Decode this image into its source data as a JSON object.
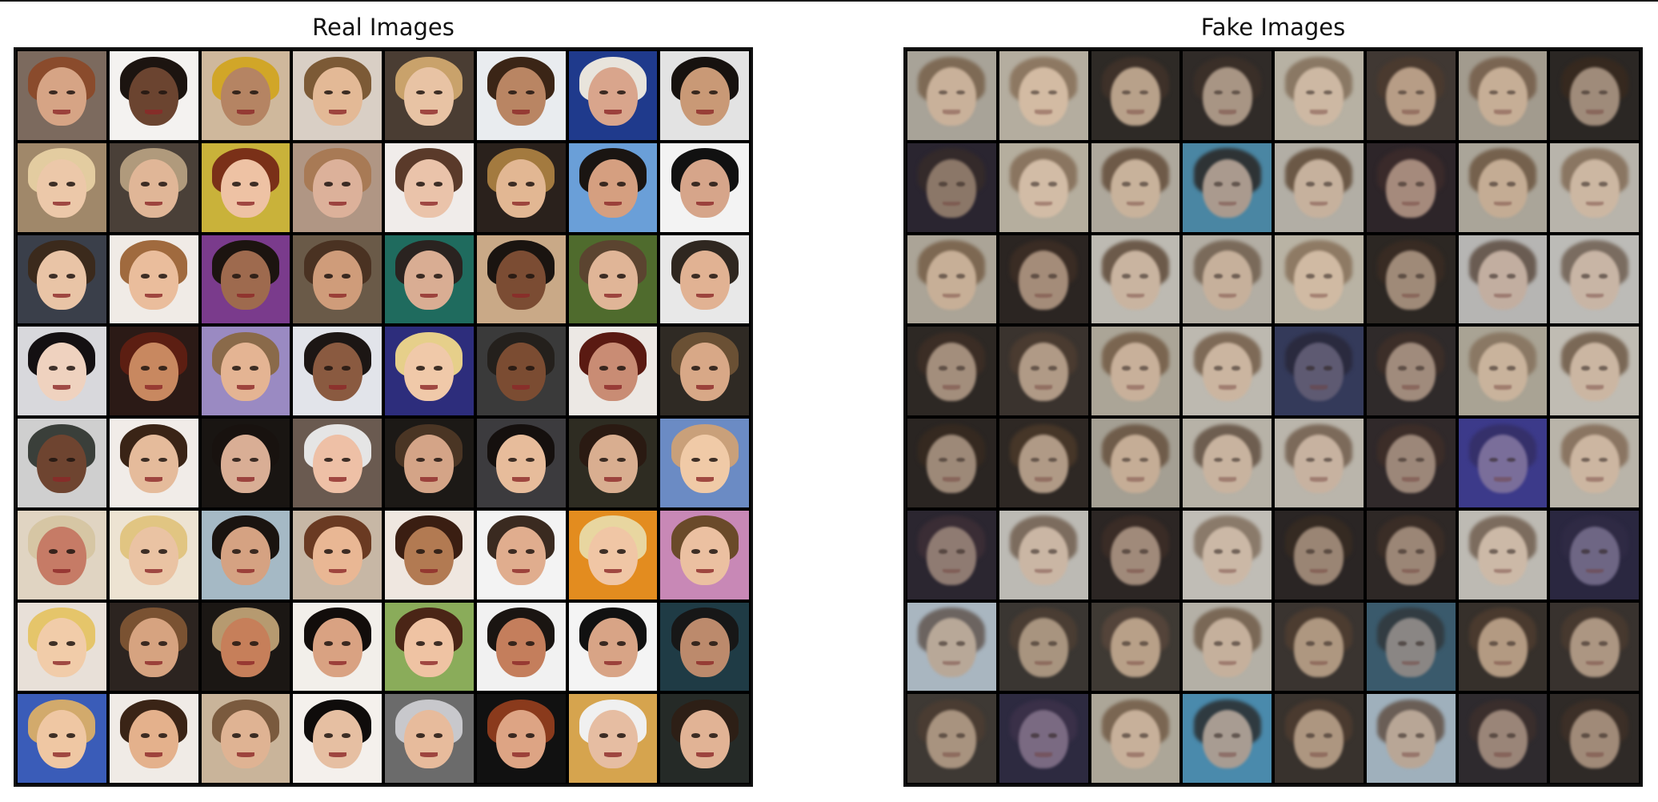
{
  "titles": {
    "real": "Real Images",
    "fake": "Fake Images"
  },
  "real_tiles": [
    {
      "bg": "#7c6a5e",
      "skin": "#d6a485",
      "hair": "#8a4b2c"
    },
    {
      "bg": "#f4f2f0",
      "skin": "#6b4430",
      "hair": "#1c1410"
    },
    {
      "bg": "#cfb89c",
      "skin": "#b58463",
      "hair": "#d1a628"
    },
    {
      "bg": "#d9cfc5",
      "skin": "#e3b996",
      "hair": "#7c5a36"
    },
    {
      "bg": "#4a3d33",
      "skin": "#e8c3a4",
      "hair": "#c9a26b"
    },
    {
      "bg": "#e9ecef",
      "skin": "#b98563",
      "hair": "#3b2516"
    },
    {
      "bg": "#1f3a8c",
      "skin": "#d9a58c",
      "hair": "#e8e4dc"
    },
    {
      "bg": "#e3e3e3",
      "skin": "#c99976",
      "hair": "#17120f"
    },
    {
      "bg": "#a0886a",
      "skin": "#ecc8a9",
      "hair": "#e3cca0"
    },
    {
      "bg": "#4a4038",
      "skin": "#e0b697",
      "hair": "#b09a7c"
    },
    {
      "bg": "#c9b23a",
      "skin": "#eec2a4",
      "hair": "#7a3018"
    },
    {
      "bg": "#b09684",
      "skin": "#dcb19a",
      "hair": "#a87a55"
    },
    {
      "bg": "#f0ecea",
      "skin": "#eac3aa",
      "hair": "#5a3a2a"
    },
    {
      "bg": "#2a211c",
      "skin": "#e2b793",
      "hair": "#a37a3f"
    },
    {
      "bg": "#6a9fd8",
      "skin": "#d59f80",
      "hair": "#1a1512"
    },
    {
      "bg": "#f3f3f3",
      "skin": "#d6a58a",
      "hair": "#111111"
    },
    {
      "bg": "#3a3f4a",
      "skin": "#e9c4a6",
      "hair": "#3b2a1c"
    },
    {
      "bg": "#f0ebe6",
      "skin": "#eabd9c",
      "hair": "#a06a3e"
    },
    {
      "bg": "#7a3b8c",
      "skin": "#9e6a4e",
      "hair": "#1c1410"
    },
    {
      "bg": "#6a5a48",
      "skin": "#cf9c7a",
      "hair": "#4a3222"
    },
    {
      "bg": "#1f6b5e",
      "skin": "#d9ad93",
      "hair": "#2a2320"
    },
    {
      "bg": "#c9a987",
      "skin": "#7b4c33",
      "hair": "#1a1410"
    },
    {
      "bg": "#4f6b2d",
      "skin": "#e0b597",
      "hair": "#5b4430"
    },
    {
      "bg": "#e8e8e8",
      "skin": "#e1b293",
      "hair": "#2f2720"
    },
    {
      "bg": "#d8d8dc",
      "skin": "#efd2bf",
      "hair": "#141012"
    },
    {
      "bg": "#2b1a16",
      "skin": "#c88860",
      "hair": "#5c1e12"
    },
    {
      "bg": "#9a8ac2",
      "skin": "#e4b493",
      "hair": "#8a6a4a"
    },
    {
      "bg": "#e2e4ea",
      "skin": "#8a5a40",
      "hair": "#1c1614"
    },
    {
      "bg": "#2d2d7c",
      "skin": "#f0c9a9",
      "hair": "#e6cf8a"
    },
    {
      "bg": "#3a3a3a",
      "skin": "#7b4c32",
      "hair": "#24201c"
    },
    {
      "bg": "#ece8e4",
      "skin": "#c98c74",
      "hair": "#5a1a12"
    },
    {
      "bg": "#2f2a24",
      "skin": "#d8a887",
      "hair": "#6a5034"
    },
    {
      "bg": "#cfcfcf",
      "skin": "#6e4430",
      "hair": "#3a3f3a"
    },
    {
      "bg": "#f1ece8",
      "skin": "#e5bb9b",
      "hair": "#3a2416"
    },
    {
      "bg": "#191512",
      "skin": "#d9ae95",
      "hair": "#18120f"
    },
    {
      "bg": "#6a5a50",
      "skin": "#eec0a6",
      "hair": "#e5e5e5"
    },
    {
      "bg": "#1c1916",
      "skin": "#d4a487",
      "hair": "#4a3524"
    },
    {
      "bg": "#3c3b3e",
      "skin": "#e7bc9b",
      "hair": "#15100e"
    },
    {
      "bg": "#2e2c22",
      "skin": "#d9ae90",
      "hair": "#2a1a12"
    },
    {
      "bg": "#6b8bc4",
      "skin": "#f0caa7",
      "hair": "#c9a07a"
    },
    {
      "bg": "#e0d4c2",
      "skin": "#c67b66",
      "hair": "#d6c6a4"
    },
    {
      "bg": "#ede3d2",
      "skin": "#eac3a3",
      "hair": "#e1c582"
    },
    {
      "bg": "#a5b9c5",
      "skin": "#d5a282",
      "hair": "#1a1410"
    },
    {
      "bg": "#c7b7a5",
      "skin": "#e9b794",
      "hair": "#6a3a22"
    },
    {
      "bg": "#efe7e0",
      "skin": "#b27a52",
      "hair": "#3a1e12"
    },
    {
      "bg": "#f3f3f3",
      "skin": "#e0ad8e",
      "hair": "#3a2a20"
    },
    {
      "bg": "#e38c1f",
      "skin": "#f0c6a5",
      "hair": "#e8d6a0"
    },
    {
      "bg": "#c888b6",
      "skin": "#ebc0a1",
      "hair": "#6a4a2a"
    },
    {
      "bg": "#e8e0d8",
      "skin": "#f1cca9",
      "hair": "#e5c56a"
    },
    {
      "bg": "#2c2420",
      "skin": "#d6a380",
      "hair": "#7a5232"
    },
    {
      "bg": "#1b1714",
      "skin": "#c67f5a",
      "hair": "#b69a70"
    },
    {
      "bg": "#f2efea",
      "skin": "#d9a282",
      "hair": "#120d0b"
    },
    {
      "bg": "#8aac5a",
      "skin": "#efc3a3",
      "hair": "#4a2516"
    },
    {
      "bg": "#f1f1f1",
      "skin": "#c47e5c",
      "hair": "#1a1512"
    },
    {
      "bg": "#f4f4f4",
      "skin": "#d8a486",
      "hair": "#111111"
    },
    {
      "bg": "#1f3b45",
      "skin": "#bc8a6c",
      "hair": "#171717"
    },
    {
      "bg": "#3a5cb8",
      "skin": "#efc7a3",
      "hair": "#d2aa6c"
    },
    {
      "bg": "#f0ebe6",
      "skin": "#e4b18c",
      "hair": "#3a2416"
    },
    {
      "bg": "#c9b49a",
      "skin": "#dfb393",
      "hair": "#7a5a3e"
    },
    {
      "bg": "#f4f0ec",
      "skin": "#e6bfa2",
      "hair": "#0f0c0b"
    },
    {
      "bg": "#6b6b6b",
      "skin": "#e7bb9c",
      "hair": "#c8c8cc"
    },
    {
      "bg": "#111111",
      "skin": "#dda484",
      "hair": "#8a3a1c"
    },
    {
      "bg": "#d6a44e",
      "skin": "#e6bda2",
      "hair": "#f0f0f0"
    },
    {
      "bg": "#252a27",
      "skin": "#e1b395",
      "hair": "#2d1f16"
    }
  ],
  "fake_tiles": [
    {
      "bg": "#a8a398",
      "skin": "#c9b19a",
      "hair": "#7e6a55"
    },
    {
      "bg": "#b4ad9f",
      "skin": "#d3bba3",
      "hair": "#8d7862"
    },
    {
      "bg": "#2e2a26",
      "skin": "#b8a18a",
      "hair": "#3e3129"
    },
    {
      "bg": "#302b28",
      "skin": "#a89584",
      "hair": "#3a2f28"
    },
    {
      "bg": "#b7b1a3",
      "skin": "#cdb8a3",
      "hair": "#8a7864"
    },
    {
      "bg": "#403833",
      "skin": "#b79d86",
      "hair": "#4a3a2f"
    },
    {
      "bg": "#a29b8e",
      "skin": "#c6ae96",
      "hair": "#7a6552"
    },
    {
      "bg": "#2b2724",
      "skin": "#9f8b7a",
      "hair": "#36291f"
    },
    {
      "bg": "#2a2530",
      "skin": "#8b7768",
      "hair": "#342a2a"
    },
    {
      "bg": "#b5ae9e",
      "skin": "#d2bca6",
      "hair": "#8a7560"
    },
    {
      "bg": "#aea89c",
      "skin": "#c8b29b",
      "hair": "#6e5a48"
    },
    {
      "bg": "#4a86a3",
      "skin": "#aa9a8e",
      "hair": "#2e3335"
    },
    {
      "bg": "#b2aea5",
      "skin": "#c6b19d",
      "hair": "#6b5846"
    },
    {
      "bg": "#2d2529",
      "skin": "#a58a7c",
      "hair": "#3a2a2a"
    },
    {
      "bg": "#aaa599",
      "skin": "#c4ac94",
      "hair": "#75614d"
    },
    {
      "bg": "#b8b4ab",
      "skin": "#ccb7a2",
      "hair": "#8a7662"
    },
    {
      "bg": "#aba497",
      "skin": "#c7af97",
      "hair": "#7d6852"
    },
    {
      "bg": "#2b2522",
      "skin": "#a48c79",
      "hair": "#3a2c24"
    },
    {
      "bg": "#bdbab2",
      "skin": "#c9b4a0",
      "hair": "#6c5a4a"
    },
    {
      "bg": "#b3aea4",
      "skin": "#c6b09b",
      "hair": "#7a6a5a"
    },
    {
      "bg": "#b9b3a4",
      "skin": "#d0baa3",
      "hair": "#8e7a64"
    },
    {
      "bg": "#2c2723",
      "skin": "#9f8a78",
      "hair": "#382b23"
    },
    {
      "bg": "#b6b5b3",
      "skin": "#c2aea0",
      "hair": "#6a5c52"
    },
    {
      "bg": "#bcbbb7",
      "skin": "#c8b5a5",
      "hair": "#7a6c60"
    },
    {
      "bg": "#2d2824",
      "skin": "#a38e7c",
      "hair": "#3b2d25"
    },
    {
      "bg": "#3a332e",
      "skin": "#b09a86",
      "hair": "#4a3b30"
    },
    {
      "bg": "#aba597",
      "skin": "#c8b09a",
      "hair": "#7a6550"
    },
    {
      "bg": "#bdb9b0",
      "skin": "#cbb5a0",
      "hair": "#7e6a57"
    },
    {
      "bg": "#343a5a",
      "skin": "#5e5a72",
      "hair": "#2a2a3e"
    },
    {
      "bg": "#2f2a2a",
      "skin": "#a08b7c",
      "hair": "#3c2e28"
    },
    {
      "bg": "#a9a394",
      "skin": "#c9b39c",
      "hair": "#8a7864"
    },
    {
      "bg": "#c0bcb3",
      "skin": "#cbb6a2",
      "hair": "#7a6856"
    },
    {
      "bg": "#2a2522",
      "skin": "#9d8978",
      "hair": "#352920"
    },
    {
      "bg": "#2e2824",
      "skin": "#b09a86",
      "hair": "#463628"
    },
    {
      "bg": "#a49f93",
      "skin": "#c5ad96",
      "hair": "#6f5c4a"
    },
    {
      "bg": "#b7b2a7",
      "skin": "#c8b39f",
      "hair": "#6e5e50"
    },
    {
      "bg": "#bab5ab",
      "skin": "#c7b2a0",
      "hair": "#7c6a5a"
    },
    {
      "bg": "#30292a",
      "skin": "#9c8779",
      "hair": "#3c2d28"
    },
    {
      "bg": "#3c3a8a",
      "skin": "#7a6e9a",
      "hair": "#35306a"
    },
    {
      "bg": "#b9b4a9",
      "skin": "#ccb6a1",
      "hair": "#8a7562"
    },
    {
      "bg": "#2b2630",
      "skin": "#8f7b72",
      "hair": "#3a2d35"
    },
    {
      "bg": "#bcbab4",
      "skin": "#cab6a4",
      "hair": "#7c6c5e"
    },
    {
      "bg": "#2c2624",
      "skin": "#a08a7a",
      "hair": "#3a2c26"
    },
    {
      "bg": "#c0bdb6",
      "skin": "#cbb8a6",
      "hair": "#8a7a6a"
    },
    {
      "bg": "#2a2524",
      "skin": "#9a8574",
      "hair": "#352a22"
    },
    {
      "bg": "#2e2826",
      "skin": "#9b8676",
      "hair": "#3a2d26"
    },
    {
      "bg": "#bdbab3",
      "skin": "#ccb9a7",
      "hair": "#7c6c5e"
    },
    {
      "bg": "#2a2740",
      "skin": "#6e6684",
      "hair": "#2f2a44"
    },
    {
      "bg": "#a9b6c0",
      "skin": "#b8a898",
      "hair": "#6c6460"
    },
    {
      "bg": "#3a3632",
      "skin": "#a8947f",
      "hair": "#4a3d33"
    },
    {
      "bg": "#3f3a34",
      "skin": "#b8a088",
      "hair": "#54443a"
    },
    {
      "bg": "#b4b0a6",
      "skin": "#c5b09c",
      "hair": "#7a6856"
    },
    {
      "bg": "#3a3430",
      "skin": "#ae9780",
      "hair": "#4c3c30"
    },
    {
      "bg": "#3a5a6c",
      "skin": "#8a8684",
      "hair": "#323c42"
    },
    {
      "bg": "#36302b",
      "skin": "#b39a82",
      "hair": "#4a3a2e"
    },
    {
      "bg": "#38322e",
      "skin": "#ac9682",
      "hair": "#47392f"
    },
    {
      "bg": "#3e3934",
      "skin": "#a8937f",
      "hair": "#4a3c32"
    },
    {
      "bg": "#2d2a40",
      "skin": "#7a6a82",
      "hair": "#3a3048"
    },
    {
      "bg": "#aca698",
      "skin": "#c7b09a",
      "hair": "#7a6652"
    },
    {
      "bg": "#4a8aac",
      "skin": "#a89c92",
      "hair": "#2f3a40"
    },
    {
      "bg": "#38322d",
      "skin": "#ad9680",
      "hair": "#4a3a2f"
    },
    {
      "bg": "#9fb0bc",
      "skin": "#b8a696",
      "hair": "#6a5e56"
    },
    {
      "bg": "#2e2a2e",
      "skin": "#9a8578",
      "hair": "#3a2e2c"
    },
    {
      "bg": "#2f2a27",
      "skin": "#a08a78",
      "hair": "#3c2f27"
    }
  ]
}
